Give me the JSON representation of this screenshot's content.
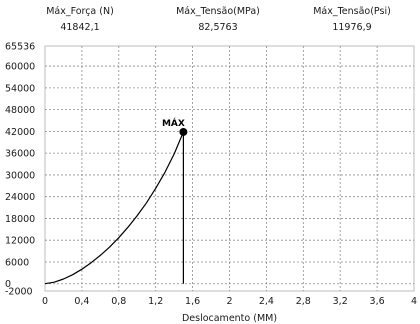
{
  "stats": [
    {
      "label": "Máx_Força (N)",
      "value": "41842,1"
    },
    {
      "label": "Máx_Tensão(MPa)",
      "value": "82,5763"
    },
    {
      "label": "Máx_Tensão(Psi)",
      "value": "11976,9"
    }
  ],
  "chart_data": {
    "type": "line",
    "xlabel": "Deslocamento (MM)",
    "ylabel": "",
    "xlim": [
      0,
      4
    ],
    "ylim": [
      -2000,
      65536
    ],
    "xticks": [
      0,
      0.4,
      0.8,
      1.2,
      1.6,
      2,
      2.4,
      2.8,
      3.2,
      3.6,
      4
    ],
    "xtick_labels": [
      "0",
      "0,4",
      "0,8",
      "1,2",
      "1,6",
      "2",
      "2,4",
      "2,8",
      "3,2",
      "3,6",
      "4"
    ],
    "yticks": [
      65536,
      60000,
      54000,
      48000,
      42000,
      36000,
      30000,
      24000,
      18000,
      12000,
      6000,
      0,
      -2000
    ],
    "ytick_labels": [
      "65536",
      "60000",
      "54000",
      "48000",
      "42000",
      "36000",
      "30000",
      "24000",
      "18000",
      "12000",
      "6000",
      "0",
      "-2000"
    ],
    "grid": true,
    "grid_style": "dashed",
    "series": [
      {
        "x": [
          0,
          0.1,
          0.2,
          0.3,
          0.4,
          0.5,
          0.6,
          0.7,
          0.8,
          0.9,
          1.0,
          1.1,
          1.2,
          1.3,
          1.4,
          1.47,
          1.5,
          1.5
        ],
        "y": [
          0,
          420,
          1300,
          2500,
          4000,
          5800,
          7800,
          10100,
          12700,
          15600,
          18800,
          22300,
          26300,
          30700,
          35800,
          40000,
          41842,
          0
        ],
        "color": "#000000"
      }
    ],
    "annotations": [
      {
        "text": "MÁX",
        "x": 1.5,
        "y": 41842,
        "marker": "circle"
      }
    ]
  }
}
